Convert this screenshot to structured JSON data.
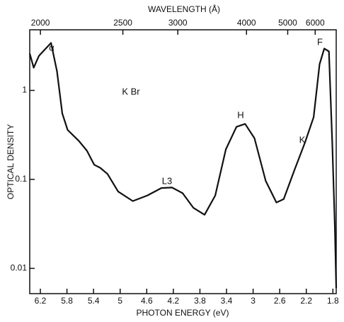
{
  "chart_data": {
    "type": "line",
    "x_label": "PHOTON ENERGY (eV)",
    "x2_label": "WAVELENGTH (Å)",
    "y_label": "OPTICAL DENSITY",
    "log_y": true,
    "x_reversed": true,
    "xlim": [
      6.36,
      1.75
    ],
    "ylim": [
      0.0052,
      4.8
    ],
    "xticks": [
      6.2,
      5.8,
      5.4,
      5.0,
      4.6,
      4.2,
      3.8,
      3.4,
      3.0,
      2.6,
      2.2,
      1.8
    ],
    "x2ticks": [
      2000,
      2500,
      3000,
      4000,
      5000,
      6000
    ],
    "yticks": [
      0.01,
      0.1,
      1
    ],
    "annotations": [
      "α",
      "K Br",
      "L3",
      "H",
      "K",
      "F"
    ],
    "series": [
      {
        "color": "#111111",
        "x": [
          6.36,
          6.3,
          6.22,
          6.04,
          5.95,
          5.87,
          5.79,
          5.62,
          5.5,
          5.39,
          5.3,
          5.19,
          5.03,
          4.81,
          4.59,
          4.38,
          4.22,
          4.06,
          3.9,
          3.73,
          3.57,
          3.41,
          3.25,
          3.12,
          2.98,
          2.81,
          2.65,
          2.54,
          2.38,
          2.22,
          2.09,
          2.0,
          1.93,
          1.86,
          1.81,
          1.77,
          1.75
        ],
        "values": [
          2.6,
          1.8,
          2.45,
          3.42,
          1.64,
          0.55,
          0.36,
          0.27,
          0.21,
          0.146,
          0.135,
          0.115,
          0.073,
          0.057,
          0.066,
          0.08,
          0.081,
          0.07,
          0.048,
          0.04,
          0.066,
          0.218,
          0.39,
          0.42,
          0.29,
          0.096,
          0.055,
          0.06,
          0.126,
          0.26,
          0.5,
          1.97,
          2.95,
          2.74,
          0.26,
          0.029,
          0.006
        ]
      }
    ]
  }
}
